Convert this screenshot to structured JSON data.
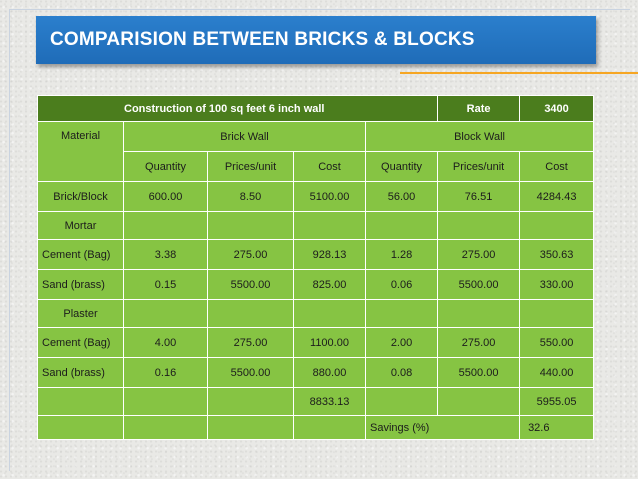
{
  "slide": {
    "title": "COMPARISION BETWEEN BRICKS & BLOCKS"
  },
  "table": {
    "header_title": "Construction of 100 sq feet 6 inch wall",
    "rate_label": "Rate",
    "rate_value": "3400",
    "material_label": "Material",
    "brick_wall_label": "Brick Wall",
    "block_wall_label": "Block Wall",
    "columns": [
      "Quantity",
      "Prices/unit",
      "Cost",
      "Quantity",
      "Prices/unit",
      "Cost"
    ],
    "rows": [
      {
        "label": "Brick/Block",
        "cells": [
          "600.00",
          "8.50",
          "5100.00",
          "56.00",
          "76.51",
          "4284.43"
        ]
      },
      {
        "label": "Mortar",
        "cells": [
          "",
          "",
          "",
          "",
          "",
          ""
        ]
      },
      {
        "label": "Cement (Bag)",
        "cells": [
          "3.38",
          "275.00",
          "928.13",
          "1.28",
          "275.00",
          "350.63"
        ]
      },
      {
        "label": "Sand (brass)",
        "cells": [
          "0.15",
          "5500.00",
          "825.00",
          "0.06",
          "5500.00",
          "330.00"
        ]
      },
      {
        "label": "Plaster",
        "cells": [
          "",
          "",
          "",
          "",
          "",
          ""
        ]
      },
      {
        "label": "Cement (Bag)",
        "cells": [
          "4.00",
          "275.00",
          "1100.00",
          "2.00",
          "275.00",
          "550.00"
        ]
      },
      {
        "label": "Sand (brass)",
        "cells": [
          "0.16",
          "5500.00",
          "880.00",
          "0.08",
          "5500.00",
          "440.00"
        ]
      }
    ],
    "totals": {
      "brick_cost": "8833.13",
      "block_cost": "5955.05"
    },
    "savings": {
      "label": "Savings (%)",
      "value": "32.6"
    }
  }
}
